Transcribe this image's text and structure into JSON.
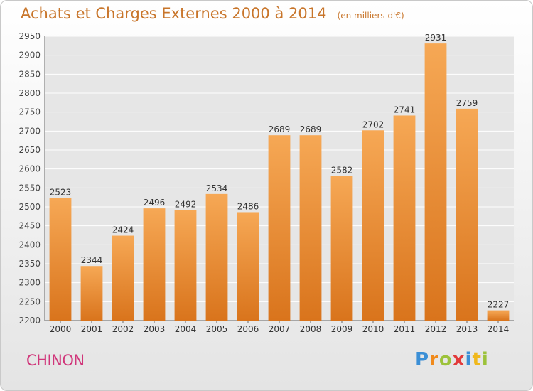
{
  "chart_data": {
    "type": "bar",
    "title": "Achats et Charges Externes 2000 à 2014",
    "subtitle": "(en milliers d'€)",
    "categories": [
      "2000",
      "2001",
      "2002",
      "2003",
      "2004",
      "2005",
      "2006",
      "2007",
      "2008",
      "2009",
      "2010",
      "2011",
      "2012",
      "2013",
      "2014"
    ],
    "values": [
      2523,
      2344,
      2424,
      2496,
      2492,
      2534,
      2486,
      2689,
      2689,
      2582,
      2702,
      2741,
      2931,
      2759,
      2227
    ],
    "ylim": [
      2200,
      2950
    ],
    "yticks": [
      2200,
      2250,
      2300,
      2350,
      2400,
      2450,
      2500,
      2550,
      2600,
      2650,
      2700,
      2750,
      2800,
      2850,
      2900,
      2950
    ],
    "xlabel": "",
    "ylabel": "",
    "grid": true,
    "colors": {
      "bar_light": "#f6a855",
      "bar_dark": "#d9741c",
      "text": "#c8752a",
      "grid": "#ffffff"
    }
  },
  "footer": {
    "city": "CHINON",
    "logo_letters": [
      {
        "ch": "P",
        "color": "#3b8fd6"
      },
      {
        "ch": "r",
        "color": "#f08a1c"
      },
      {
        "ch": "o",
        "color": "#9cc23a"
      },
      {
        "ch": "x",
        "color": "#e23a3a"
      },
      {
        "ch": "i",
        "color": "#3b8fd6"
      },
      {
        "ch": "t",
        "color": "#f0b81c"
      },
      {
        "ch": "i",
        "color": "#9cc23a"
      }
    ]
  }
}
